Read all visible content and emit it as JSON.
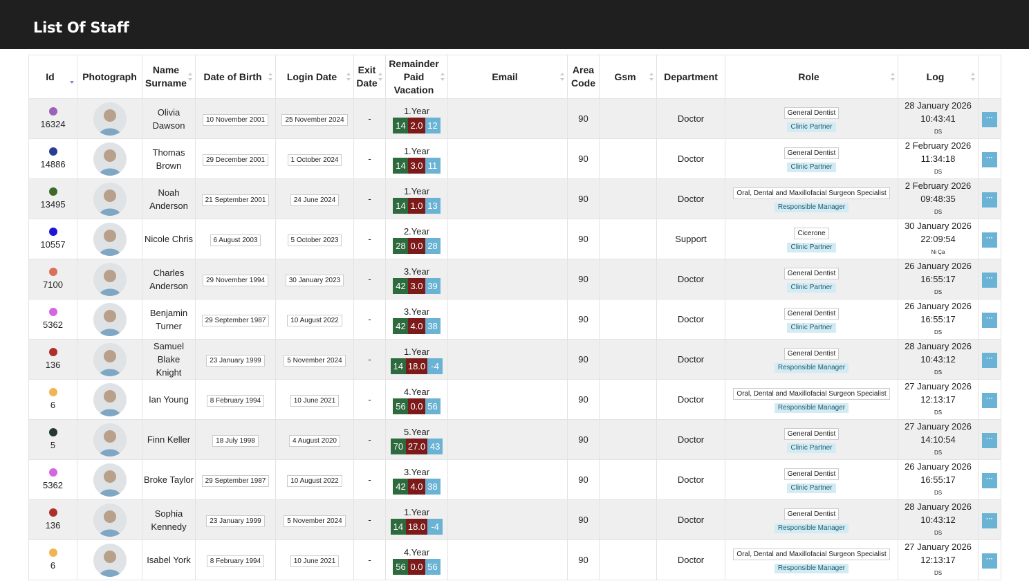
{
  "header": {
    "title": "List Of Staff"
  },
  "table": {
    "columns": [
      "Id",
      "Photograph",
      "Name Surname",
      "Date of Birth",
      "Login Date",
      "Exit Date",
      "Remainder Paid Vacation",
      "Email",
      "Area Code",
      "Gsm",
      "Department",
      "Role",
      "Log"
    ],
    "sorted_column": "Id",
    "rows": [
      {
        "id": 16324,
        "color": "#9a62b8",
        "name": "Olivia Dawson",
        "birth": "10 November 2001",
        "login": "25 November 2024",
        "exit": "-",
        "vacation": {
          "year": "1.Year",
          "earned": "14",
          "used": "2.0",
          "remaining": "12"
        },
        "area_code": 90,
        "department": "Doctor",
        "role": "General Dentist",
        "role_tag": "Clinic Partner",
        "log": {
          "date": "28 January 2026",
          "time": "10:43:41",
          "user": "DS"
        }
      },
      {
        "id": 14886,
        "color": "#2b3c94",
        "name": "Thomas Brown",
        "birth": "29 December 2001",
        "login": "1 October 2024",
        "exit": "-",
        "vacation": {
          "year": "1.Year",
          "earned": "14",
          "used": "3.0",
          "remaining": "11"
        },
        "area_code": 90,
        "department": "Doctor",
        "role": "General Dentist",
        "role_tag": "Clinic Partner",
        "log": {
          "date": "2 February 2026",
          "time": "11:34:18",
          "user": "DS"
        }
      },
      {
        "id": 13495,
        "color": "#3d6a28",
        "name": "Noah Anderson",
        "birth": "21 September 2001",
        "login": "24 June 2024",
        "exit": "-",
        "vacation": {
          "year": "1.Year",
          "earned": "14",
          "used": "1.0",
          "remaining": "13"
        },
        "area_code": 90,
        "department": "Doctor",
        "role": "Oral, Dental and Maxillofacial Surgeon Specialist",
        "role_tag": "Responsible Manager",
        "log": {
          "date": "2 February 2026",
          "time": "09:48:35",
          "user": "DS"
        }
      },
      {
        "id": 10557,
        "color": "#1c16d8",
        "name": "Nicole Chris",
        "birth": "6 August 2003",
        "login": "5 October 2023",
        "exit": "-",
        "vacation": {
          "year": "2.Year",
          "earned": "28",
          "used": "0.0",
          "remaining": "28"
        },
        "area_code": 90,
        "department": "Support",
        "role": "Cicerone",
        "role_tag": "Clinic Partner",
        "log": {
          "date": "30 January 2026",
          "time": "22:09:54",
          "user": "Ni Ça"
        }
      },
      {
        "id": 7100,
        "color": "#d9705a",
        "name": "Charles Anderson",
        "birth": "29 November 1994",
        "login": "30 January 2023",
        "exit": "-",
        "vacation": {
          "year": "3.Year",
          "earned": "42",
          "used": "3.0",
          "remaining": "39"
        },
        "area_code": 90,
        "department": "Doctor",
        "role": "General Dentist",
        "role_tag": "Clinic Partner",
        "log": {
          "date": "26 January 2026",
          "time": "16:55:17",
          "user": "DS"
        }
      },
      {
        "id": 5362,
        "color": "#d466e0",
        "name": "Benjamin Turner",
        "birth": "29 September 1987",
        "login": "10 August 2022",
        "exit": "-",
        "vacation": {
          "year": "3.Year",
          "earned": "42",
          "used": "4.0",
          "remaining": "38"
        },
        "area_code": 90,
        "department": "Doctor",
        "role": "General Dentist",
        "role_tag": "Clinic Partner",
        "log": {
          "date": "26 January 2026",
          "time": "16:55:17",
          "user": "DS"
        }
      },
      {
        "id": 136,
        "color": "#ad2f2c",
        "name": "Samuel Blake Knight",
        "birth": "23 January 1999",
        "login": "5 November 2024",
        "exit": "-",
        "vacation": {
          "year": "1.Year",
          "earned": "14",
          "used": "18.0",
          "remaining": "-4"
        },
        "area_code": 90,
        "department": "Doctor",
        "role": "General Dentist",
        "role_tag": "Responsible Manager",
        "log": {
          "date": "28 January 2026",
          "time": "10:43:12",
          "user": "DS"
        }
      },
      {
        "id": 6,
        "color": "#f0b452",
        "name": "Ian Young",
        "birth": "8 February 1994",
        "login": "10 June 2021",
        "exit": "-",
        "vacation": {
          "year": "4.Year",
          "earned": "56",
          "used": "0.0",
          "remaining": "56"
        },
        "area_code": 90,
        "department": "Doctor",
        "role": "Oral, Dental and Maxillofacial Surgeon Specialist",
        "role_tag": "Responsible Manager",
        "log": {
          "date": "27 January 2026",
          "time": "12:13:17",
          "user": "DS"
        }
      },
      {
        "id": 5,
        "color": "#263833",
        "name": "Finn Keller",
        "birth": "18 July 1998",
        "login": "4 August 2020",
        "exit": "-",
        "vacation": {
          "year": "5.Year",
          "earned": "70",
          "used": "27.0",
          "remaining": "43"
        },
        "area_code": 90,
        "department": "Doctor",
        "role": "General Dentist",
        "role_tag": "Clinic Partner",
        "log": {
          "date": "27 January 2026",
          "time": "14:10:54",
          "user": "DS"
        }
      },
      {
        "id": 5362,
        "color": "#d466e0",
        "name": "Broke Taylor",
        "birth": "29 September 1987",
        "login": "10 August 2022",
        "exit": "-",
        "vacation": {
          "year": "3.Year",
          "earned": "42",
          "used": "4.0",
          "remaining": "38"
        },
        "area_code": 90,
        "department": "Doctor",
        "role": "General Dentist",
        "role_tag": "Clinic Partner",
        "log": {
          "date": "26 January 2026",
          "time": "16:55:17",
          "user": "DS"
        }
      },
      {
        "id": 136,
        "color": "#ad2f2c",
        "name": "Sophia Kennedy",
        "birth": "23 January 1999",
        "login": "5 November 2024",
        "exit": "-",
        "vacation": {
          "year": "1.Year",
          "earned": "14",
          "used": "18.0",
          "remaining": "-4"
        },
        "area_code": 90,
        "department": "Doctor",
        "role": "General Dentist",
        "role_tag": "Responsible Manager",
        "log": {
          "date": "28 January 2026",
          "time": "10:43:12",
          "user": "DS"
        }
      },
      {
        "id": 6,
        "color": "#f0b452",
        "name": "Isabel York",
        "birth": "8 February 1994",
        "login": "10 June 2021",
        "exit": "-",
        "vacation": {
          "year": "4.Year",
          "earned": "56",
          "used": "0.0",
          "remaining": "56"
        },
        "area_code": 90,
        "department": "Doctor",
        "role": "Oral, Dental and Maxillofacial Surgeon Specialist",
        "role_tag": "Responsible Manager",
        "log": {
          "date": "27 January 2026",
          "time": "12:13:17",
          "user": "DS"
        }
      }
    ]
  }
}
